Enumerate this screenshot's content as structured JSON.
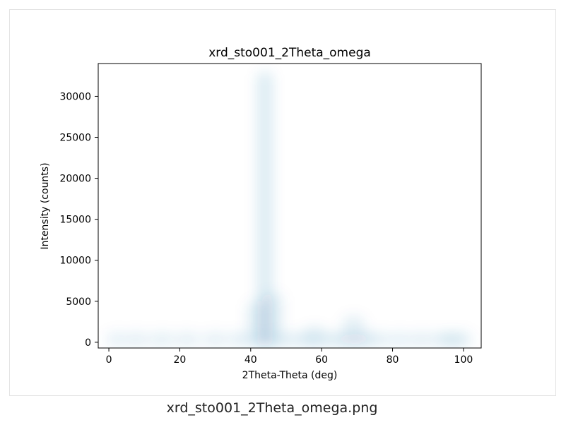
{
  "caption": "xrd_sto001_2Theta_omega.png",
  "chart_data": {
    "type": "heatmap",
    "title": "xrd_sto001_2Theta_omega",
    "xlabel": "2Theta-Theta (deg)",
    "ylabel": "Intensity (counts)",
    "xlim": [
      -3,
      105
    ],
    "ylim": [
      -700,
      34000
    ],
    "xticks": [
      0,
      20,
      40,
      60,
      80,
      100
    ],
    "yticks": [
      0,
      5000,
      10000,
      15000,
      20000,
      25000,
      30000
    ],
    "grid": false,
    "colormap_color": "#1f6fa8",
    "x": [
      2,
      8,
      15,
      22,
      30,
      37,
      42,
      44,
      46,
      50,
      55,
      58,
      62,
      66,
      69,
      72,
      76,
      82,
      88,
      94,
      97,
      100
    ],
    "y": [
      400,
      500,
      600,
      500,
      550,
      700,
      5000,
      33000,
      6000,
      800,
      700,
      1900,
      700,
      1200,
      3200,
      1300,
      600,
      400,
      500,
      800,
      1200,
      600
    ]
  }
}
